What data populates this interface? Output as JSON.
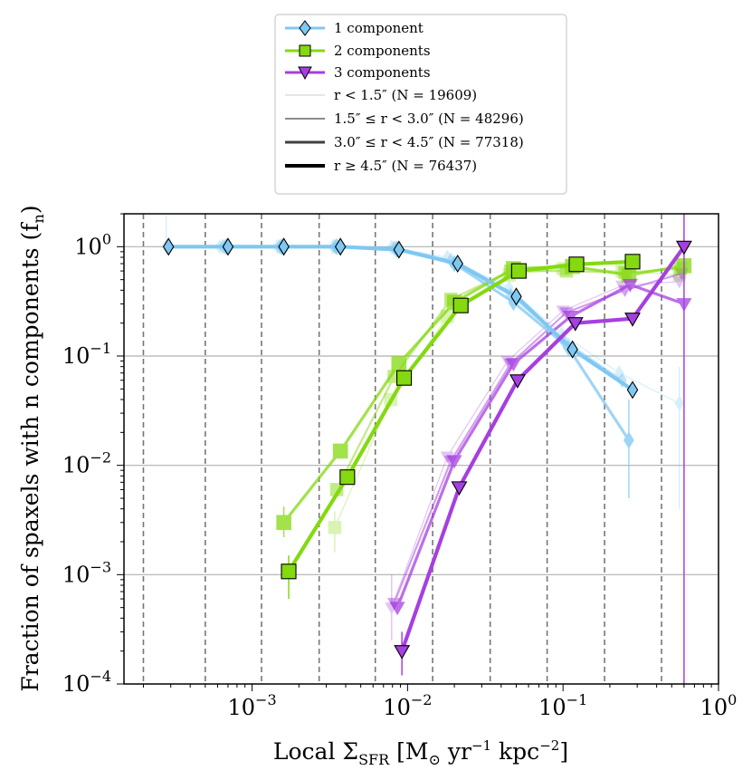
{
  "chart_data": {
    "type": "line",
    "title": "",
    "xlabel_parts": {
      "base": "Local Σ",
      "sub": "SFR",
      "units": " [M",
      "sun_sub": "⊙",
      "yr": " yr",
      "yr_exp": "−1",
      "kpc": " kpc",
      "kpc_exp": "−2",
      "close": "]"
    },
    "ylabel": "Fraction of spaxels with n components (f",
    "ylabel_sub": "n",
    "ylabel_close": ")",
    "xscale": "log",
    "yscale": "log",
    "xlim": [
      0.00015,
      1.0
    ],
    "ylim": [
      0.0001,
      2.0
    ],
    "x_ticks": [
      {
        "value": 0.001,
        "base": "10",
        "exp": "−3"
      },
      {
        "value": 0.01,
        "base": "10",
        "exp": "−2"
      },
      {
        "value": 0.1,
        "base": "10",
        "exp": "−1"
      },
      {
        "value": 1.0,
        "base": "10",
        "exp": "0"
      }
    ],
    "y_ticks": [
      {
        "value": 1.0,
        "base": "10",
        "exp": "0"
      },
      {
        "value": 0.1,
        "base": "10",
        "exp": "−1"
      },
      {
        "value": 0.01,
        "base": "10",
        "exp": "−2"
      },
      {
        "value": 0.001,
        "base": "10",
        "exp": "−3"
      },
      {
        "value": 0.0001,
        "base": "10",
        "exp": "−4"
      }
    ],
    "bin_edges": [
      0.0002,
      0.0005,
      0.00115,
      0.0027,
      0.0062,
      0.0145,
      0.034,
      0.079,
      0.185,
      0.43
    ],
    "colors": {
      "c1": "#7ec8f2",
      "c2": "#84d90f",
      "c3": "#a63fe0"
    },
    "legend": {
      "entries": [
        {
          "label": "1 component",
          "marker": "diamond",
          "color": "#7ec8f2"
        },
        {
          "label": "2 components",
          "marker": "square",
          "color": "#84d90f"
        },
        {
          "label": "3 components",
          "marker": "triangle",
          "color": "#a63fe0"
        }
      ],
      "radius_entries": [
        {
          "label": "r < 1.5″ (N = 19609)",
          "opacity": 0.35,
          "width": 1
        },
        {
          "label": "1.5″ ≤ r < 3.0″ (N = 48296)",
          "opacity": 0.55,
          "width": 2
        },
        {
          "label": "3.0″ ≤ r < 4.5″ (N = 77318)",
          "opacity": 0.75,
          "width": 3
        },
        {
          "label": "r ≥ 4.5″ (N = 76437)",
          "opacity": 1.0,
          "width": 4
        }
      ]
    },
    "series": [
      {
        "component": 1,
        "radius_bin": 0,
        "name": "1 component, r<1.5",
        "x": [
          0.00028,
          0.00062,
          0.00145,
          0.0033,
          0.0079,
          0.018,
          0.045,
          0.098,
          0.23,
          0.56
        ],
        "y": [
          1.0,
          1.0,
          1.0,
          1.0,
          0.99,
          0.8,
          0.42,
          0.16,
          0.07,
          0.037
        ],
        "yerr": [
          [
            0.9,
            1.9
          ],
          null,
          null,
          null,
          null,
          null,
          null,
          null,
          null,
          [
            0.004,
            0.08
          ]
        ]
      },
      {
        "component": 1,
        "radius_bin": 1,
        "name": "1 component, 1.5-3.0",
        "x": [
          0.00029,
          0.00065,
          0.0015,
          0.0034,
          0.0082,
          0.019,
          0.046,
          0.1,
          0.24,
          0.0
        ],
        "y": [
          1.0,
          1.0,
          1.0,
          1.0,
          0.97,
          0.75,
          0.36,
          0.14,
          0.06,
          null
        ],
        "yerr": [
          null,
          null,
          null,
          null,
          null,
          null,
          null,
          null,
          null,
          null
        ]
      },
      {
        "component": 1,
        "radius_bin": 2,
        "name": "1 component, 3.0-4.5",
        "x": [
          0.00029,
          0.00068,
          0.00155,
          0.0035,
          0.0085,
          0.02,
          0.048,
          0.108,
          0.265,
          0.0
        ],
        "y": [
          1.0,
          1.0,
          1.0,
          1.0,
          0.95,
          0.7,
          0.31,
          0.12,
          0.017,
          null
        ],
        "yerr": [
          null,
          null,
          null,
          null,
          null,
          null,
          null,
          null,
          [
            0.005,
            0.04
          ],
          null
        ]
      },
      {
        "component": 1,
        "radius_bin": 3,
        "name": "1 component, r>=4.5",
        "x": [
          0.00029,
          0.0007,
          0.0016,
          0.0037,
          0.0088,
          0.021,
          0.05,
          0.115,
          0.28,
          0.0
        ],
        "y": [
          1.0,
          1.0,
          1.0,
          1.0,
          0.94,
          0.7,
          0.35,
          0.115,
          0.049,
          null
        ],
        "yerr": [
          null,
          null,
          null,
          null,
          null,
          null,
          null,
          null,
          null,
          null
        ]
      },
      {
        "component": 2,
        "radius_bin": 0,
        "name": "2 components, r<1.5",
        "x": [
          0.0,
          0.0,
          0.0,
          0.0034,
          0.0078,
          0.018,
          0.045,
          0.1,
          0.24,
          0.56
        ],
        "y": [
          null,
          null,
          null,
          0.0027,
          0.04,
          0.23,
          0.55,
          0.63,
          0.6,
          0.55
        ],
        "yerr": [
          null,
          null,
          null,
          [
            0.0016,
            0.0038
          ],
          null,
          null,
          null,
          null,
          null,
          null
        ]
      },
      {
        "component": 2,
        "radius_bin": 1,
        "name": "2 components, 1.5-3.0",
        "x": [
          0.0,
          0.0,
          0.0,
          0.0035,
          0.0082,
          0.019,
          0.046,
          0.105,
          0.25,
          0.57
        ],
        "y": [
          null,
          null,
          null,
          0.006,
          0.065,
          0.33,
          0.6,
          0.6,
          0.58,
          0.63
        ],
        "yerr": [
          null,
          null,
          null,
          null,
          null,
          null,
          null,
          null,
          null,
          null
        ]
      },
      {
        "component": 2,
        "radius_bin": 2,
        "name": "2 components, 3.0-4.5",
        "x": [
          0.0,
          0.0,
          0.0016,
          0.0037,
          0.0088,
          0.02,
          0.048,
          0.115,
          0.265,
          0.6
        ],
        "y": [
          null,
          null,
          0.003,
          0.0135,
          0.085,
          0.31,
          0.63,
          0.66,
          0.55,
          0.67
        ],
        "yerr": [
          null,
          null,
          [
            0.0022,
            0.0042
          ],
          null,
          null,
          null,
          null,
          null,
          null,
          null
        ]
      },
      {
        "component": 2,
        "radius_bin": 3,
        "name": "2 components, r>=4.5",
        "x": [
          0.0,
          0.0,
          0.00172,
          0.0041,
          0.0095,
          0.022,
          0.052,
          0.122,
          0.28,
          0.0
        ],
        "y": [
          null,
          null,
          0.00107,
          0.0078,
          0.063,
          0.29,
          0.6,
          0.69,
          0.73,
          null
        ],
        "yerr": [
          null,
          null,
          [
            0.0006,
            0.0015
          ],
          null,
          null,
          null,
          null,
          null,
          null,
          null
        ]
      },
      {
        "component": 3,
        "radius_bin": 0,
        "name": "3 components, r<1.5",
        "x": [
          0.0,
          0.0,
          0.0,
          0.0,
          0.0079,
          0.018,
          0.044,
          0.1,
          0.24,
          0.56
        ],
        "y": [
          null,
          null,
          null,
          null,
          0.0005,
          0.012,
          0.09,
          0.26,
          0.44,
          0.48
        ],
        "yerr": [
          null,
          null,
          null,
          null,
          [
            0.00025,
            0.001
          ],
          null,
          null,
          null,
          null,
          null
        ]
      },
      {
        "component": 3,
        "radius_bin": 1,
        "name": "3 components, 1.5-3.0",
        "x": [
          0.0,
          0.0,
          0.0,
          0.0,
          0.0082,
          0.019,
          0.046,
          0.105,
          0.25,
          0.58
        ],
        "y": [
          null,
          null,
          null,
          null,
          0.00055,
          0.011,
          0.085,
          0.25,
          0.4,
          0.57
        ],
        "yerr": [
          null,
          null,
          null,
          null,
          null,
          null,
          null,
          null,
          null,
          null
        ]
      },
      {
        "component": 3,
        "radius_bin": 2,
        "name": "3 components, 3.0-4.5",
        "x": [
          0.0,
          0.0,
          0.0,
          0.0,
          0.0086,
          0.02,
          0.048,
          0.112,
          0.27,
          0.6
        ],
        "y": [
          null,
          null,
          null,
          null,
          0.0005,
          0.011,
          0.085,
          0.23,
          0.45,
          0.3
        ],
        "yerr": [
          null,
          null,
          null,
          null,
          null,
          null,
          null,
          null,
          null,
          null
        ]
      },
      {
        "component": 3,
        "radius_bin": 3,
        "name": "3 components, r>=4.5",
        "x": [
          0.0,
          0.0,
          0.0,
          0.0,
          0.0092,
          0.0215,
          0.051,
          0.12,
          0.28,
          0.6
        ],
        "y": [
          null,
          null,
          null,
          null,
          0.0002,
          0.0063,
          0.06,
          0.2,
          0.22,
          1.0
        ],
        "yerr": [
          null,
          null,
          null,
          null,
          [
            0.00012,
            0.0003
          ],
          null,
          null,
          null,
          null,
          [
            0.0001,
            2.0
          ]
        ]
      }
    ]
  }
}
